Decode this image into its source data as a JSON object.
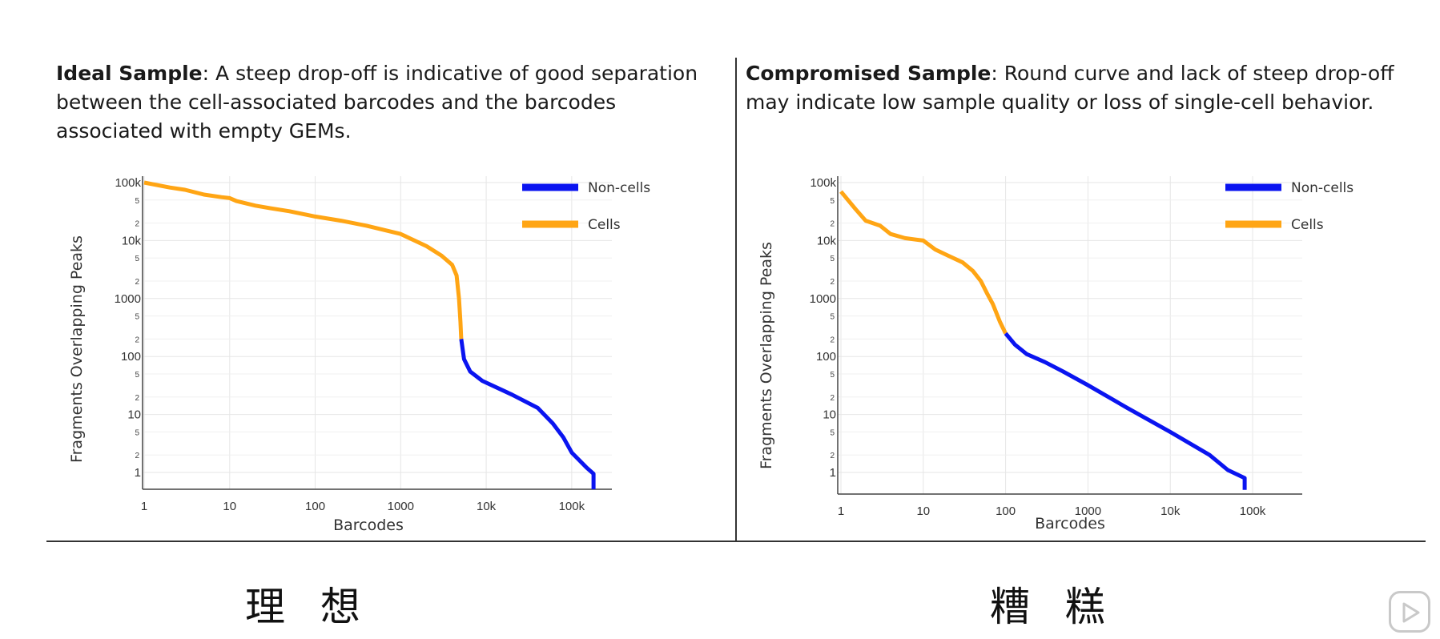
{
  "panels": {
    "left": {
      "caption_bold": "Ideal Sample",
      "caption_rest": ": A steep drop-off is indicative of good separation between the cell-associated barcodes and the barcodes associated with empty GEMs.",
      "label_zh": "理 想"
    },
    "right": {
      "caption_bold": "Compromised Sample",
      "caption_rest": ": Round curve and lack of steep drop-off may indicate low sample quality or loss of single-cell behavior.",
      "label_zh": "糟 糕"
    }
  },
  "colors": {
    "non_cells": "#0a14f0",
    "cells": "#ffa514",
    "grid": "#e6e6e6",
    "axis": "#444444"
  },
  "icons": {
    "play": "play-icon"
  },
  "chart_data": [
    {
      "type": "line",
      "title": "Ideal Sample",
      "xlabel": "Barcodes",
      "ylabel": "Fragments Overlapping Peaks",
      "xscale": "log",
      "yscale": "log",
      "xlim": [
        1,
        200000
      ],
      "ylim": [
        0.5,
        120000
      ],
      "x_ticks": [
        "1",
        "10",
        "100",
        "1000",
        "10k",
        "100k"
      ],
      "y_ticks": [
        "1",
        "10",
        "100",
        "1000",
        "10k",
        "100k"
      ],
      "y_minor_ticks": [
        "2",
        "5"
      ],
      "legend": [
        "Non-cells",
        "Cells"
      ],
      "legend_position": "top-right",
      "series": [
        {
          "name": "Cells",
          "points": [
            [
              1,
              100000
            ],
            [
              2,
              82000
            ],
            [
              3,
              75000
            ],
            [
              5,
              62000
            ],
            [
              8,
              56000
            ],
            [
              10,
              54000
            ],
            [
              12,
              48000
            ],
            [
              20,
              40000
            ],
            [
              30,
              36000
            ],
            [
              50,
              32000
            ],
            [
              100,
              26000
            ],
            [
              200,
              22000
            ],
            [
              400,
              18000
            ],
            [
              1000,
              13000
            ],
            [
              2000,
              8000
            ],
            [
              3000,
              5500
            ],
            [
              4000,
              3800
            ],
            [
              4500,
              2500
            ],
            [
              4800,
              1000
            ],
            [
              5000,
              400
            ],
            [
              5100,
              200
            ]
          ]
        },
        {
          "name": "Non-cells",
          "points": [
            [
              5100,
              200
            ],
            [
              5500,
              90
            ],
            [
              6500,
              55
            ],
            [
              9000,
              38
            ],
            [
              20000,
              22
            ],
            [
              40000,
              13
            ],
            [
              60000,
              7
            ],
            [
              80000,
              4
            ],
            [
              100000,
              2.2
            ],
            [
              150000,
              1.2
            ],
            [
              180000,
              0.95
            ],
            [
              180000,
              0.5
            ]
          ]
        }
      ]
    },
    {
      "type": "line",
      "title": "Compromised Sample",
      "xlabel": "Barcodes",
      "ylabel": "Fragments Overlapping Peaks",
      "xscale": "log",
      "yscale": "log",
      "xlim": [
        1,
        200000
      ],
      "ylim": [
        0.5,
        120000
      ],
      "x_ticks": [
        "1",
        "10",
        "100",
        "1000",
        "10k",
        "100k"
      ],
      "y_ticks": [
        "1",
        "10",
        "100",
        "1000",
        "10k",
        "100k"
      ],
      "y_minor_ticks": [
        "2",
        "5"
      ],
      "legend": [
        "Non-cells",
        "Cells"
      ],
      "legend_position": "top-right",
      "series": [
        {
          "name": "Cells",
          "points": [
            [
              1,
              70000
            ],
            [
              1.5,
              35000
            ],
            [
              2,
              22000
            ],
            [
              3,
              18000
            ],
            [
              4,
              13000
            ],
            [
              6,
              11000
            ],
            [
              10,
              10000
            ],
            [
              14,
              7000
            ],
            [
              20,
              5500
            ],
            [
              30,
              4200
            ],
            [
              40,
              3000
            ],
            [
              50,
              2000
            ],
            [
              60,
              1200
            ],
            [
              70,
              800
            ],
            [
              85,
              400
            ],
            [
              100,
              250
            ]
          ]
        },
        {
          "name": "Non-cells",
          "points": [
            [
              100,
              250
            ],
            [
              130,
              160
            ],
            [
              180,
              110
            ],
            [
              300,
              80
            ],
            [
              500,
              55
            ],
            [
              1000,
              32
            ],
            [
              3000,
              13
            ],
            [
              10000,
              5
            ],
            [
              30000,
              2
            ],
            [
              50000,
              1.1
            ],
            [
              80000,
              0.8
            ],
            [
              80000,
              0.5
            ]
          ]
        }
      ]
    }
  ]
}
